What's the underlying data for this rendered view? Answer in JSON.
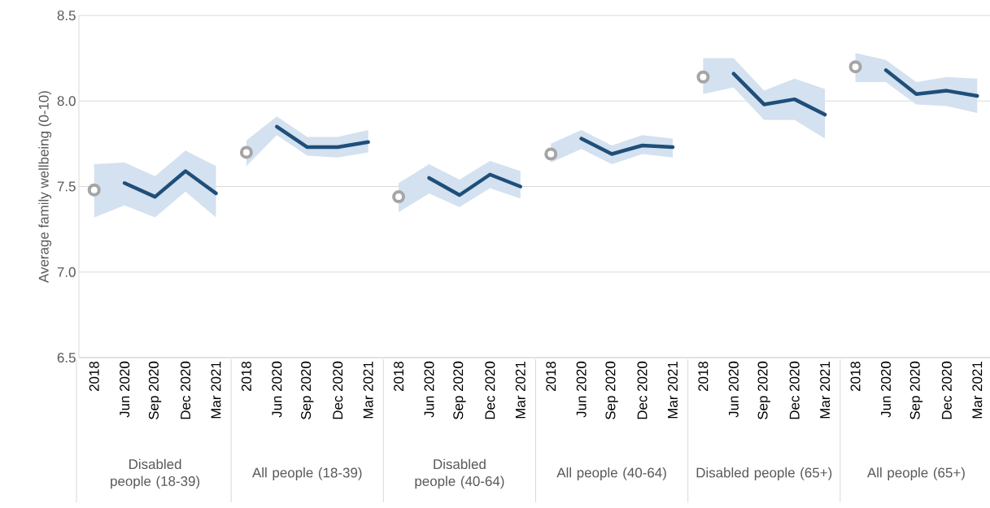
{
  "chart_data": {
    "type": "line",
    "ylabel": "Average family wellbeing (0-10)",
    "categories": [
      "2018",
      "Jun 2020",
      "Sep 2020",
      "Dec 2020",
      "Mar 2021",
      "2018",
      "Jun 2020",
      "Sep 2020",
      "Dec 2020",
      "Mar 2021",
      "2018",
      "Jun 2020",
      "Sep 2020",
      "Dec 2020",
      "Mar 2021",
      "2018",
      "Jun 2020",
      "Sep 2020",
      "Dec 2020",
      "Mar 2021",
      "2018",
      "Jun 2020",
      "Sep 2020",
      "Dec 2020",
      "Mar 2021",
      "2018",
      "Jun 2020",
      "Sep 2020",
      "Dec 2020",
      "Mar 2021"
    ],
    "annotations": [
      "Disabled people (18-39)",
      "All people (18-39)",
      "Disabled people (40-64)",
      "All people (40-64)",
      "Disabled people (65+)",
      "All people (65+)"
    ],
    "series": [
      {
        "type": "scatter",
        "color": "#a5a5a5",
        "marker": "circle",
        "values": [
          7.48,
          null,
          null,
          null,
          null,
          7.7,
          null,
          null,
          null,
          null,
          7.44,
          null,
          null,
          null,
          null,
          7.69,
          null,
          null,
          null,
          null,
          8.14,
          null,
          null,
          null,
          null,
          8.2,
          null,
          null,
          null,
          null
        ]
      },
      {
        "color": "#1f4e79",
        "marker": "none",
        "line_style": "solid",
        "values": [
          null,
          7.52,
          7.44,
          7.59,
          7.46,
          null,
          null,
          null,
          null,
          null,
          null,
          null,
          null,
          null,
          null,
          null,
          null,
          null,
          null,
          null,
          null,
          null,
          null,
          null,
          null,
          null,
          null,
          null,
          null,
          null
        ],
        "lower": [
          7.32,
          7.39,
          7.32,
          7.47,
          7.32,
          null,
          null,
          null,
          null,
          null,
          null,
          null,
          null,
          null,
          null,
          null,
          null,
          null,
          null,
          null,
          null,
          null,
          null,
          null,
          null,
          null,
          null,
          null,
          null,
          null
        ],
        "upper": [
          7.63,
          7.64,
          7.56,
          7.71,
          7.62,
          null,
          null,
          null,
          null,
          null,
          null,
          null,
          null,
          null,
          null,
          null,
          null,
          null,
          null,
          null,
          null,
          null,
          null,
          null,
          null,
          null,
          null,
          null,
          null,
          null
        ]
      },
      {
        "color": "#1f4e79",
        "marker": "none",
        "line_style": "solid",
        "values": [
          null,
          null,
          null,
          null,
          null,
          null,
          7.85,
          7.73,
          7.73,
          7.76,
          null,
          null,
          null,
          null,
          null,
          null,
          null,
          null,
          null,
          null,
          null,
          null,
          null,
          null,
          null,
          null,
          null,
          null,
          null,
          null
        ],
        "lower": [
          null,
          null,
          null,
          null,
          null,
          7.62,
          7.8,
          7.68,
          7.67,
          7.7,
          null,
          null,
          null,
          null,
          null,
          null,
          null,
          null,
          null,
          null,
          null,
          null,
          null,
          null,
          null,
          null,
          null,
          null,
          null,
          null
        ],
        "upper": [
          null,
          null,
          null,
          null,
          null,
          7.77,
          7.91,
          7.79,
          7.79,
          7.83,
          null,
          null,
          null,
          null,
          null,
          null,
          null,
          null,
          null,
          null,
          null,
          null,
          null,
          null,
          null,
          null,
          null,
          null,
          null,
          null
        ]
      },
      {
        "color": "#1f4e79",
        "marker": "none",
        "line_style": "solid",
        "values": [
          null,
          null,
          null,
          null,
          null,
          null,
          null,
          null,
          null,
          null,
          null,
          7.55,
          7.45,
          7.57,
          7.5,
          null,
          null,
          null,
          null,
          null,
          null,
          null,
          null,
          null,
          null,
          null,
          null,
          null,
          null,
          null
        ],
        "lower": [
          null,
          null,
          null,
          null,
          null,
          null,
          null,
          null,
          null,
          null,
          7.35,
          7.46,
          7.38,
          7.49,
          7.43,
          null,
          null,
          null,
          null,
          null,
          null,
          null,
          null,
          null,
          null,
          null,
          null,
          null,
          null,
          null
        ],
        "upper": [
          null,
          null,
          null,
          null,
          null,
          null,
          null,
          null,
          null,
          null,
          7.52,
          7.63,
          7.54,
          7.65,
          7.59,
          null,
          null,
          null,
          null,
          null,
          null,
          null,
          null,
          null,
          null,
          null,
          null,
          null,
          null,
          null
        ]
      },
      {
        "color": "#1f4e79",
        "marker": "none",
        "line_style": "solid",
        "values": [
          null,
          null,
          null,
          null,
          null,
          null,
          null,
          null,
          null,
          null,
          null,
          null,
          null,
          null,
          null,
          null,
          7.78,
          7.69,
          7.74,
          7.73,
          null,
          null,
          null,
          null,
          null,
          null,
          null,
          null,
          null,
          null
        ],
        "lower": [
          null,
          null,
          null,
          null,
          null,
          null,
          null,
          null,
          null,
          null,
          null,
          null,
          null,
          null,
          null,
          7.64,
          7.72,
          7.63,
          7.69,
          7.67,
          null,
          null,
          null,
          null,
          null,
          null,
          null,
          null,
          null,
          null
        ],
        "upper": [
          null,
          null,
          null,
          null,
          null,
          null,
          null,
          null,
          null,
          null,
          null,
          null,
          null,
          null,
          null,
          7.75,
          7.83,
          7.74,
          7.8,
          7.78,
          null,
          null,
          null,
          null,
          null,
          null,
          null,
          null,
          null,
          null
        ]
      },
      {
        "color": "#1f4e79",
        "marker": "none",
        "line_style": "solid",
        "values": [
          null,
          null,
          null,
          null,
          null,
          null,
          null,
          null,
          null,
          null,
          null,
          null,
          null,
          null,
          null,
          null,
          null,
          null,
          null,
          null,
          null,
          8.16,
          7.98,
          8.01,
          7.92,
          null,
          null,
          null,
          null,
          null
        ],
        "lower": [
          null,
          null,
          null,
          null,
          null,
          null,
          null,
          null,
          null,
          null,
          null,
          null,
          null,
          null,
          null,
          null,
          null,
          null,
          null,
          null,
          8.04,
          8.08,
          7.89,
          7.89,
          7.78,
          null,
          null,
          null,
          null,
          null
        ],
        "upper": [
          null,
          null,
          null,
          null,
          null,
          null,
          null,
          null,
          null,
          null,
          null,
          null,
          null,
          null,
          null,
          null,
          null,
          null,
          null,
          null,
          8.25,
          8.25,
          8.06,
          8.13,
          8.07,
          null,
          null,
          null,
          null,
          null
        ]
      },
      {
        "color": "#1f4e79",
        "marker": "none",
        "line_style": "solid",
        "values": [
          null,
          null,
          null,
          null,
          null,
          null,
          null,
          null,
          null,
          null,
          null,
          null,
          null,
          null,
          null,
          null,
          null,
          null,
          null,
          null,
          null,
          null,
          null,
          null,
          null,
          null,
          8.18,
          8.04,
          8.06,
          8.03
        ],
        "lower": [
          null,
          null,
          null,
          null,
          null,
          null,
          null,
          null,
          null,
          null,
          null,
          null,
          null,
          null,
          null,
          null,
          null,
          null,
          null,
          null,
          null,
          null,
          null,
          null,
          null,
          8.11,
          8.11,
          7.98,
          7.97,
          7.93
        ],
        "upper": [
          null,
          null,
          null,
          null,
          null,
          null,
          null,
          null,
          null,
          null,
          null,
          null,
          null,
          null,
          null,
          null,
          null,
          null,
          null,
          null,
          null,
          null,
          null,
          null,
          null,
          8.28,
          8.24,
          8.11,
          8.14,
          8.13
        ]
      }
    ],
    "ylim": [
      6.5,
      8.5
    ],
    "yticks": [
      6.5,
      {
        "value": 7,
        "label": "7.0"
      },
      7.5,
      {
        "value": 8,
        "label": "8.0"
      },
      8.5
    ],
    "grid": "y"
  }
}
